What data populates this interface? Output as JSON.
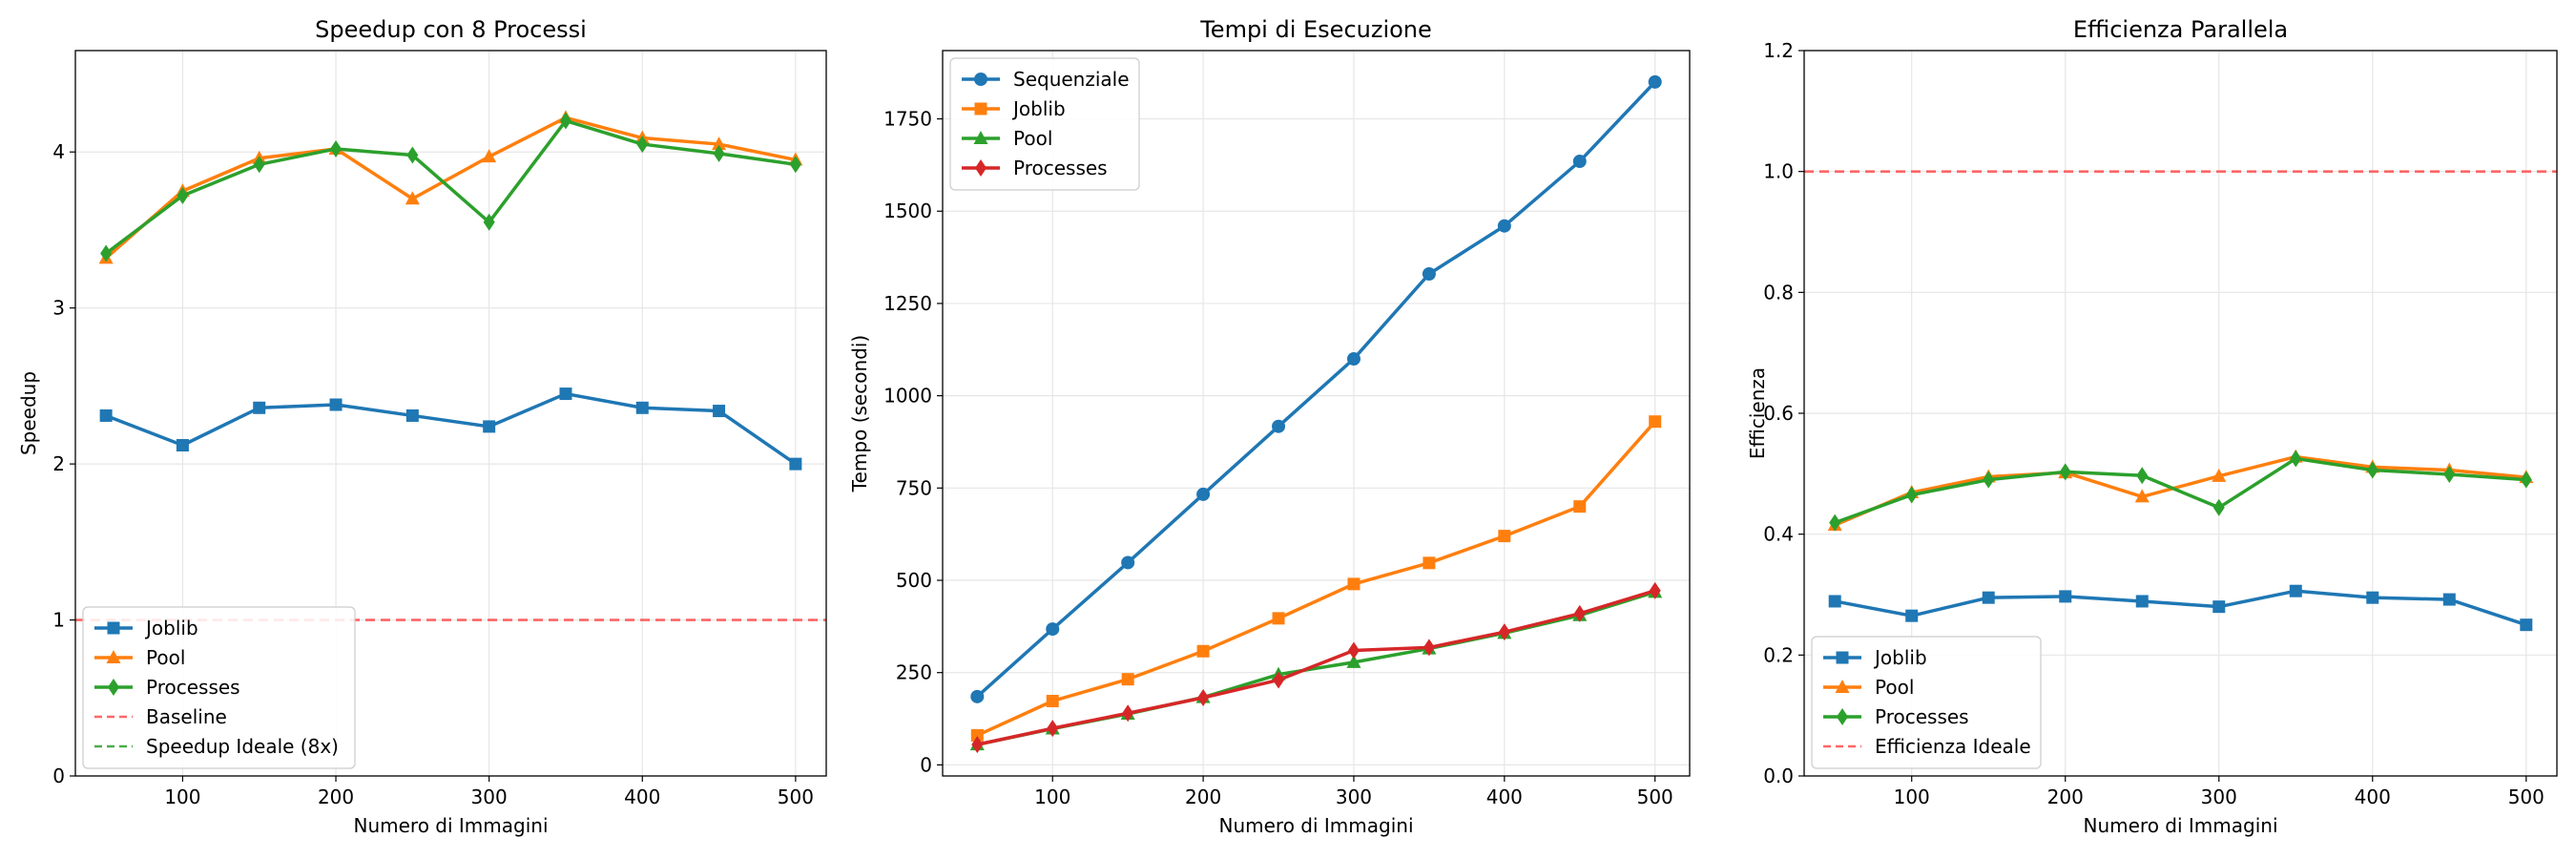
{
  "colors": {
    "Joblib": "#1f77b4",
    "Pool": "#ff7f0e",
    "Processes": "#2ca02c",
    "baseline": "#ff4d4d",
    "ideal": "#2ca02c",
    "grid": "#e6e6e6",
    "Sequenziale": "#1f77b4",
    "JoblibTime": "#ff7f0e",
    "PoolTime": "#2ca02c",
    "ProcessesTime": "#d62728"
  },
  "chart_data": [
    {
      "type": "line",
      "title": "Speedup con 8 Processi",
      "xlabel": "Numero di Immagini",
      "ylabel": "Speedup",
      "xlim": [
        30,
        520
      ],
      "ylim": [
        0,
        4.65
      ],
      "xticks": [
        100,
        200,
        300,
        400,
        500
      ],
      "yticks": [
        0,
        1,
        2,
        3,
        4
      ],
      "grid": true,
      "legend": "lower-left",
      "x": [
        50,
        100,
        150,
        200,
        250,
        300,
        350,
        400,
        450,
        500
      ],
      "series": [
        {
          "name": "Joblib",
          "marker": "s",
          "color": "#1f77b4",
          "values": [
            2.31,
            2.12,
            2.36,
            2.38,
            2.31,
            2.24,
            2.45,
            2.36,
            2.34,
            2.0
          ]
        },
        {
          "name": "Pool",
          "marker": "^",
          "color": "#ff7f0e",
          "values": [
            3.32,
            3.75,
            3.96,
            4.02,
            3.7,
            3.97,
            4.22,
            4.09,
            4.05,
            3.95
          ]
        },
        {
          "name": "Processes",
          "marker": "d",
          "color": "#2ca02c",
          "values": [
            3.35,
            3.72,
            3.92,
            4.02,
            3.98,
            3.55,
            4.2,
            4.05,
            3.99,
            3.92
          ]
        }
      ],
      "hlines": [
        {
          "name": "Baseline",
          "y": 1,
          "color": "#ff4d4d"
        },
        {
          "name": "Speedup Ideale (8x)",
          "y": 8,
          "color": "#2ca02c"
        }
      ]
    },
    {
      "type": "line",
      "title": "Tempi di Esecuzione",
      "xlabel": "Numero di Immagini",
      "ylabel": "Tempo (secondi)",
      "xlim": [
        27,
        523
      ],
      "ylim": [
        -30,
        1935
      ],
      "xticks": [
        100,
        200,
        300,
        400,
        500
      ],
      "yticks": [
        0,
        250,
        500,
        750,
        1000,
        1250,
        1500,
        1750
      ],
      "grid": true,
      "legend": "top-left",
      "x": [
        50,
        100,
        150,
        200,
        250,
        300,
        350,
        400,
        450,
        500
      ],
      "series": [
        {
          "name": "Sequenziale",
          "marker": "o",
          "color": "#1f77b4",
          "values": [
            185,
            368,
            548,
            733,
            917,
            1100,
            1330,
            1460,
            1635,
            1850
          ]
        },
        {
          "name": "Joblib",
          "marker": "s",
          "color": "#ff7f0e",
          "values": [
            80,
            173,
            232,
            308,
            397,
            490,
            547,
            620,
            700,
            930
          ]
        },
        {
          "name": "Pool",
          "marker": "^",
          "color": "#2ca02c",
          "values": [
            55,
            98,
            138,
            183,
            245,
            278,
            315,
            357,
            405,
            468
          ]
        },
        {
          "name": "Processes",
          "marker": "d",
          "color": "#d62728",
          "values": [
            55,
            99,
            140,
            182,
            230,
            310,
            318,
            360,
            410,
            472
          ]
        }
      ]
    },
    {
      "type": "line",
      "title": "Efficienza Parallela",
      "xlabel": "Numero di Immagini",
      "ylabel": "Efficienza",
      "xlim": [
        30,
        520
      ],
      "ylim": [
        0,
        1.2
      ],
      "xticks": [
        100,
        200,
        300,
        400,
        500
      ],
      "yticks": [
        "0.0",
        "0.2",
        "0.4",
        "0.6",
        "0.8",
        "1.0",
        "1.2"
      ],
      "grid": true,
      "legend": "lower-left",
      "x": [
        50,
        100,
        150,
        200,
        250,
        300,
        350,
        400,
        450,
        500
      ],
      "series": [
        {
          "name": "Joblib",
          "marker": "s",
          "color": "#1f77b4",
          "values": [
            0.289,
            0.265,
            0.295,
            0.297,
            0.289,
            0.28,
            0.306,
            0.295,
            0.292,
            0.25
          ]
        },
        {
          "name": "Pool",
          "marker": "^",
          "color": "#ff7f0e",
          "values": [
            0.415,
            0.469,
            0.495,
            0.502,
            0.462,
            0.496,
            0.528,
            0.511,
            0.506,
            0.494
          ]
        },
        {
          "name": "Processes",
          "marker": "d",
          "color": "#2ca02c",
          "values": [
            0.419,
            0.465,
            0.49,
            0.503,
            0.497,
            0.444,
            0.525,
            0.506,
            0.499,
            0.49
          ]
        }
      ],
      "hlines": [
        {
          "name": "Efficienza Ideale",
          "y": 1.0,
          "color": "#ff4d4d"
        }
      ]
    }
  ]
}
